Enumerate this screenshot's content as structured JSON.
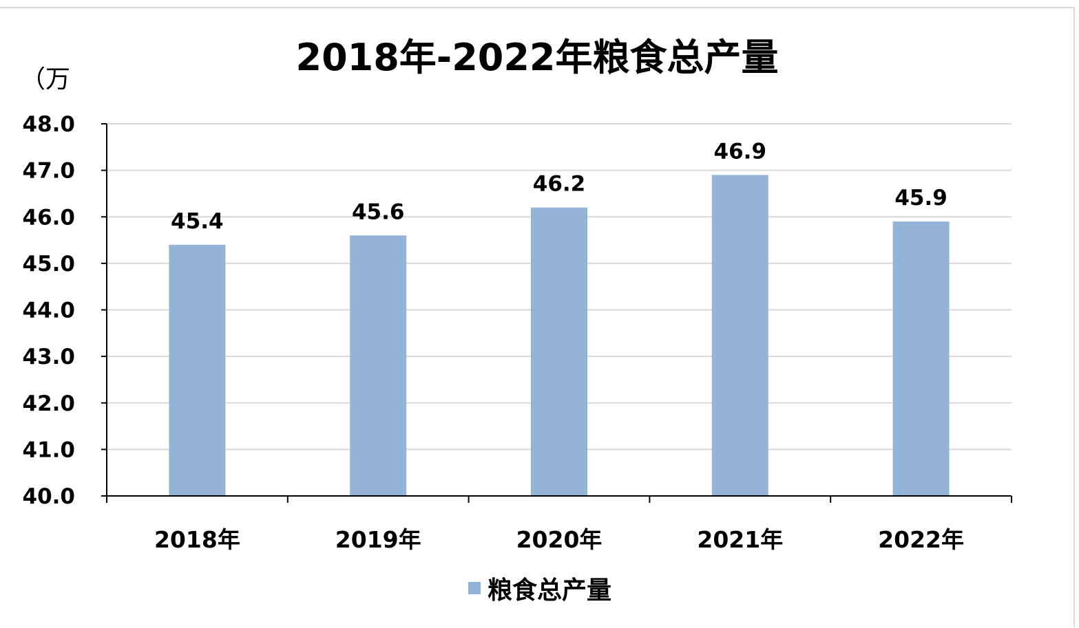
{
  "chart_data": {
    "type": "bar",
    "title": "2018年-2022年粮食总产量",
    "ylabel": "（万",
    "categories": [
      "2018年",
      "2019年",
      "2020年",
      "2021年",
      "2022年"
    ],
    "series": [
      {
        "name": "粮食总产量",
        "values": [
          45.4,
          45.6,
          46.2,
          46.9,
          45.9
        ],
        "color": "#95b3d7"
      }
    ],
    "data_labels": [
      "45.4",
      "45.6",
      "46.2",
      "46.9",
      "45.9"
    ],
    "yticks": [
      "40.0",
      "41.0",
      "42.0",
      "43.0",
      "44.0",
      "45.0",
      "46.0",
      "47.0",
      "48.0"
    ],
    "ylim": [
      40,
      48
    ],
    "grid": true,
    "legend_position": "bottom"
  }
}
